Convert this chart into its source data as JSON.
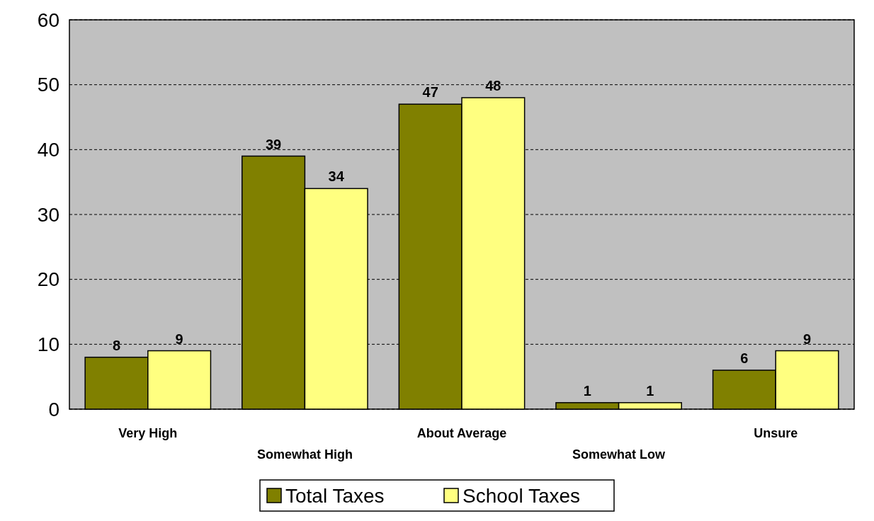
{
  "chart_data": {
    "type": "bar",
    "categories": [
      "Very High",
      "Somewhat High",
      "About Average",
      "Somewhat Low",
      "Unsure"
    ],
    "series": [
      {
        "name": "Total Taxes",
        "color": "#808000",
        "values": [
          8,
          39,
          47,
          1,
          6
        ]
      },
      {
        "name": "School Taxes",
        "color": "#ffff80",
        "values": [
          9,
          34,
          48,
          1,
          9
        ]
      }
    ],
    "ylim": [
      0,
      60
    ],
    "yticks": [
      0,
      10,
      20,
      30,
      40,
      50,
      60
    ],
    "grid": "y",
    "data_labels": true,
    "legend": "bottom"
  }
}
